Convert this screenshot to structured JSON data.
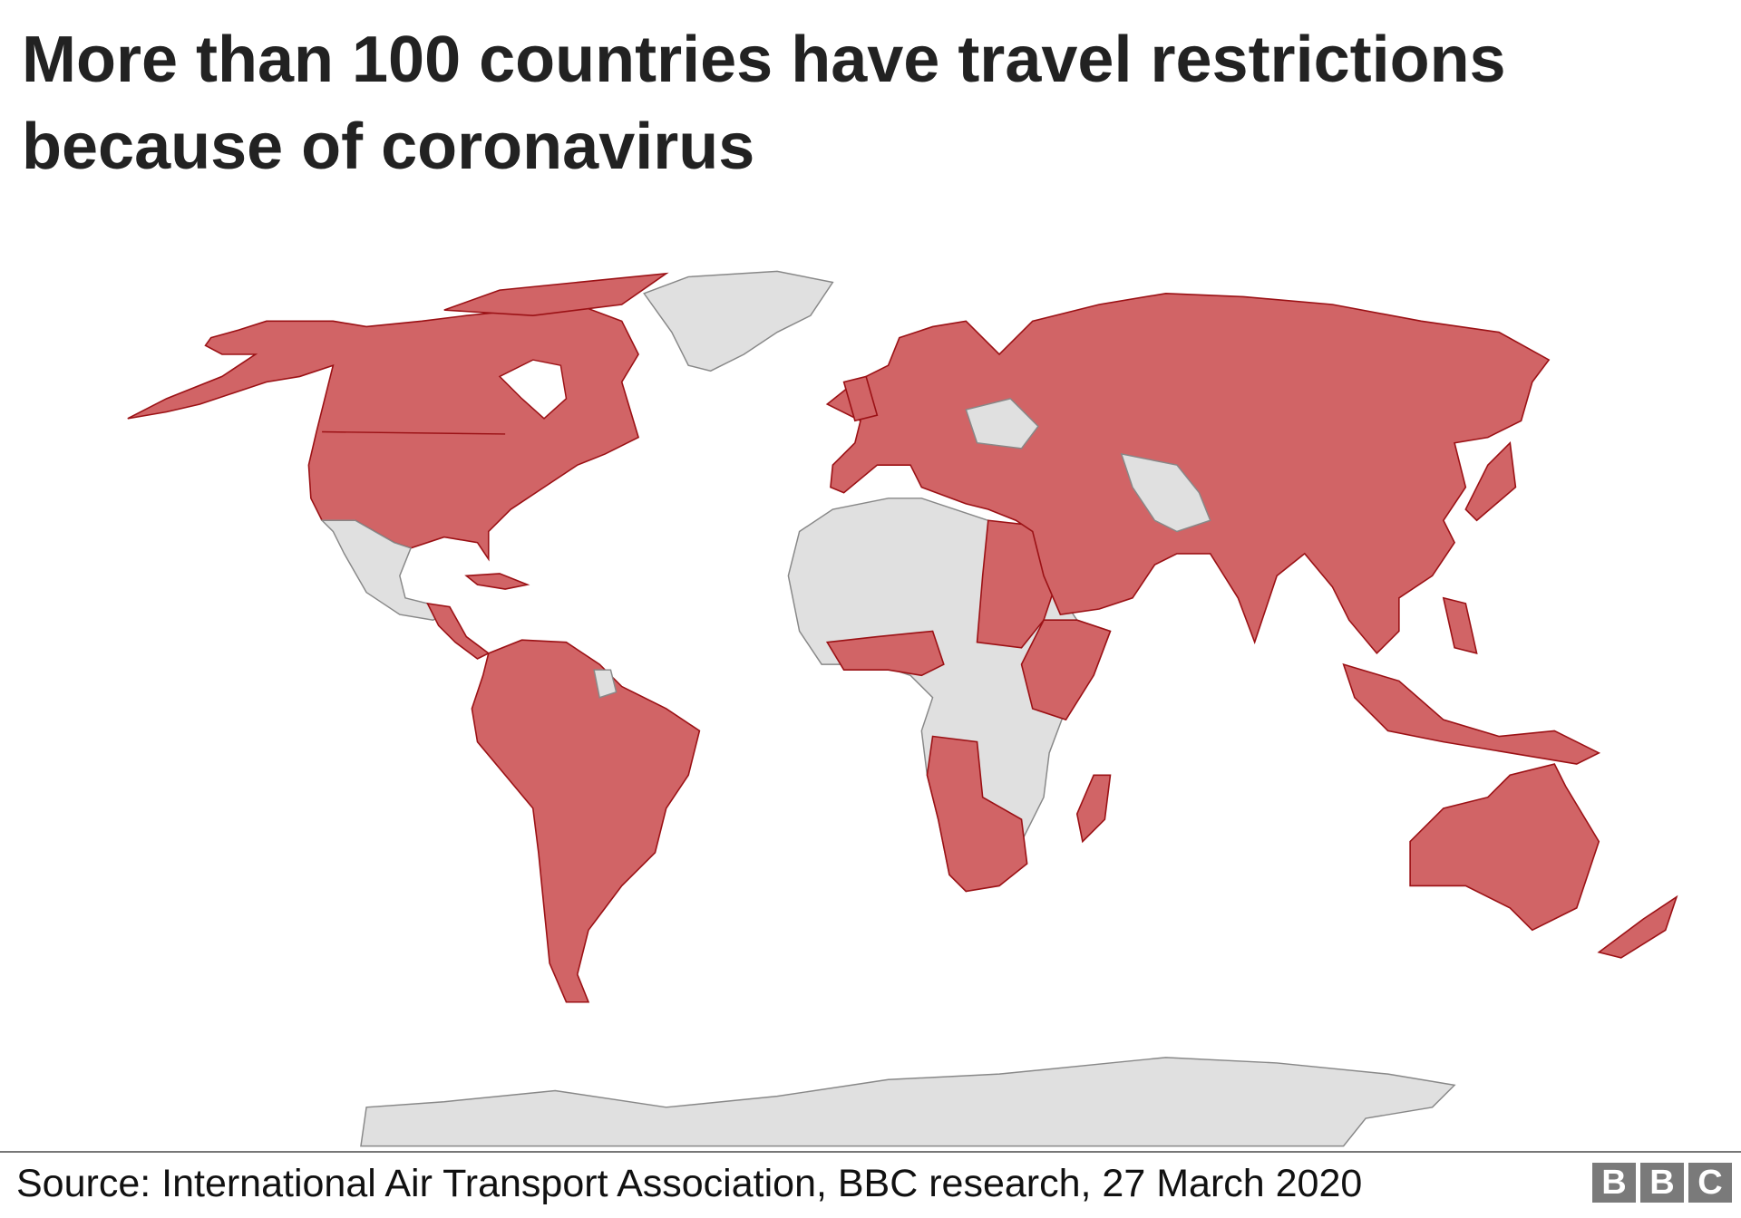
{
  "title": "More than 100 countries have travel restrictions because of coronavirus",
  "source": "Source:  International Air Transport Association, BBC research, 27 March 2020",
  "logo": [
    "B",
    "B",
    "C"
  ],
  "map": {
    "colors": {
      "restrictions": "#d16466",
      "restrictions_border": "#9b1115",
      "no_data": "#e0e0e0",
      "no_data_border": "#888888"
    }
  }
}
